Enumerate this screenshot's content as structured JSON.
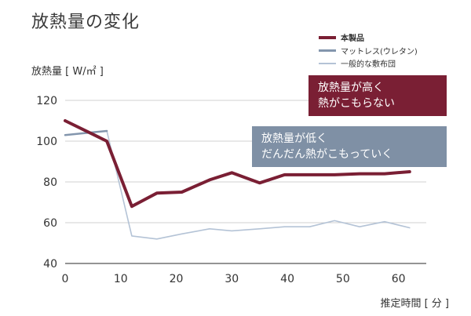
{
  "chart_data": {
    "type": "line",
    "title": "放熱量の変化",
    "ylabel": "放熱量 [ W/㎡ ]",
    "xlabel": "推定時間 [ 分 ]",
    "xlim": [
      0,
      65
    ],
    "ylim": [
      40,
      120
    ],
    "xticks": [
      0,
      10,
      20,
      30,
      40,
      50,
      60
    ],
    "yticks": [
      40,
      60,
      80,
      100,
      120
    ],
    "grid": "horizontal",
    "legend_position": "top-right",
    "series": [
      {
        "name": "本製品",
        "color": "#7a1f34",
        "x": [
          0,
          7.5,
          12,
          16.5,
          21,
          26,
          30,
          35,
          39.5,
          44,
          48.5,
          53,
          57.5,
          62
        ],
        "y": [
          110,
          100,
          68,
          74.5,
          75,
          81,
          84.5,
          79.5,
          83.5,
          83.5,
          83.5,
          84,
          84,
          85
        ]
      },
      {
        "name": "マットレス(ウレタン)",
        "color": "#8396ad",
        "x": [
          0,
          7.5,
          12,
          16.5,
          21,
          26,
          30,
          35,
          39.5,
          44,
          48.5,
          53,
          57.5,
          62
        ],
        "y": [
          103,
          105,
          null,
          null,
          null,
          null,
          null,
          null,
          null,
          null,
          null,
          null,
          null,
          null
        ]
      },
      {
        "name": "一般的な敷布団",
        "color": "#b4c3d6",
        "x": [
          0,
          7.5,
          12,
          16.5,
          21,
          26,
          30,
          35,
          39.5,
          44,
          48.5,
          53,
          57.5,
          62
        ],
        "y": [
          103,
          105,
          53.5,
          52,
          54.5,
          57,
          56,
          57,
          58,
          58,
          61,
          58,
          60.5,
          57.5
        ]
      }
    ],
    "annotations": [
      {
        "id": "high",
        "lines": [
          "放熱量が高く",
          "熱がこもらない"
        ],
        "color": "#7a1f34"
      },
      {
        "id": "low",
        "lines": [
          "放熱量が低く",
          "だんだん熱がこもっていく"
        ],
        "color": "#7f90a5"
      }
    ]
  }
}
